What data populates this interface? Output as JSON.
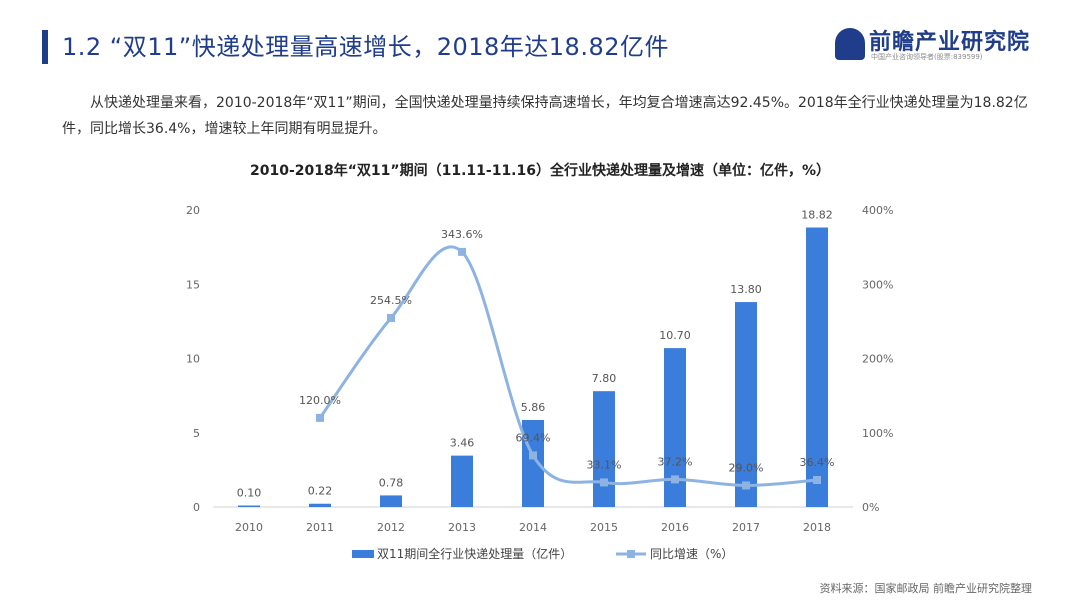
{
  "header": {
    "title": "1.2 “双11”快递处理量高速增长，2018年达18.82亿件"
  },
  "logo": {
    "name": "前瞻产业研究院",
    "tagline": "中国产业咨询领导者(股票:839599)"
  },
  "paragraph": "从快递处理量来看，2010-2018年“双11”期间，全国快递处理量持续保持高速增长，年均复合增速高达92.45%。2018年全行业快递处理量为18.82亿件，同比增长36.4%，增速较上年同期有明显提升。",
  "source": "资料来源：国家邮政局 前瞻产业研究院整理",
  "colors": {
    "bar": "#3a7ddb",
    "line": "#8db3e2",
    "title": "#1f3d8a"
  },
  "chart_data": {
    "type": "bar+line",
    "title": "2010-2018年“双11”期间（11.11-11.16）全行业快递处理量及增速（单位：亿件，%）",
    "categories": [
      "2010",
      "2011",
      "2012",
      "2013",
      "2014",
      "2015",
      "2016",
      "2017",
      "2018"
    ],
    "series": [
      {
        "name": "双11期间全行业快递处理量（亿件）",
        "type": "bar",
        "axis": "left",
        "values": [
          0.1,
          0.22,
          0.78,
          3.46,
          5.86,
          7.8,
          10.7,
          13.8,
          18.82
        ],
        "labels": [
          "0.10",
          "0.22",
          "0.78",
          "3.46",
          "5.86",
          "7.80",
          "10.70",
          "13.80",
          "18.82"
        ]
      },
      {
        "name": "同比增速（%）",
        "type": "line",
        "axis": "right",
        "smooth": true,
        "values": [
          null,
          120.0,
          254.5,
          343.6,
          69.4,
          33.1,
          37.2,
          29.0,
          36.4
        ],
        "labels": [
          "",
          "120.0%",
          "254.5%",
          "343.6%",
          "69.4%",
          "33.1%",
          "37.2%",
          "29.0%",
          "36.4%"
        ]
      }
    ],
    "y_left": {
      "ylim": [
        0,
        20
      ],
      "ticks": [
        "0",
        "5",
        "10",
        "15",
        "20"
      ]
    },
    "y_right": {
      "ylim": [
        0,
        400
      ],
      "ticks": [
        "0%",
        "100%",
        "200%",
        "300%",
        "400%"
      ]
    },
    "grid": false,
    "legend": "bottom"
  }
}
